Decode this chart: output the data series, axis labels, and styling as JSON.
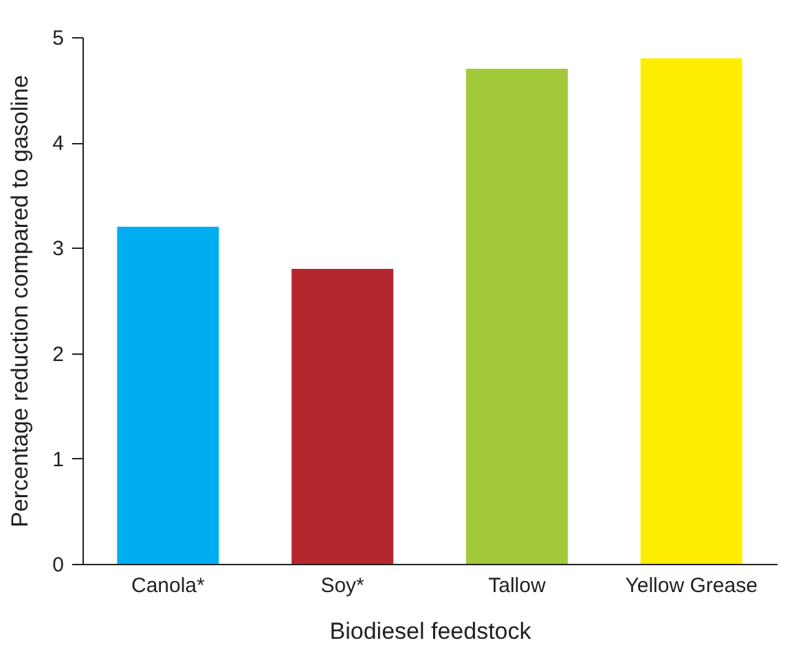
{
  "chart_data": {
    "type": "bar",
    "xlabel": "Biodiesel feedstock",
    "ylabel": "Percentage reduction compared to gasoline",
    "categories": [
      "Canola*",
      "Soy*",
      "Tallow",
      "Yellow Grease"
    ],
    "values": [
      3.2,
      2.8,
      4.7,
      4.8
    ],
    "colors": [
      "#00aeef",
      "#b5272f",
      "#a3c93a",
      "#ffed00"
    ],
    "ylim": [
      0,
      5
    ],
    "yticks": [
      0,
      1,
      2,
      3,
      4,
      5
    ],
    "grid": false,
    "legend": false
  }
}
